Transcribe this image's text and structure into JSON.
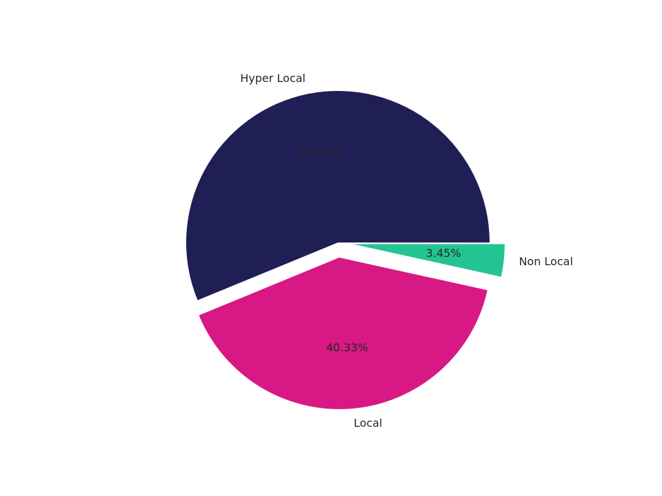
{
  "chart_data": {
    "type": "pie",
    "categories": [
      "Hyper Local",
      "Local",
      "Non Local"
    ],
    "values": [
      56.22,
      40.33,
      3.45
    ],
    "value_labels": [
      "56.22%",
      "40.33%",
      "3.45%"
    ],
    "colors": [
      "#1f1f55",
      "#d81884",
      "#23c493"
    ],
    "explode": [
      0,
      0.1,
      0.1
    ]
  }
}
